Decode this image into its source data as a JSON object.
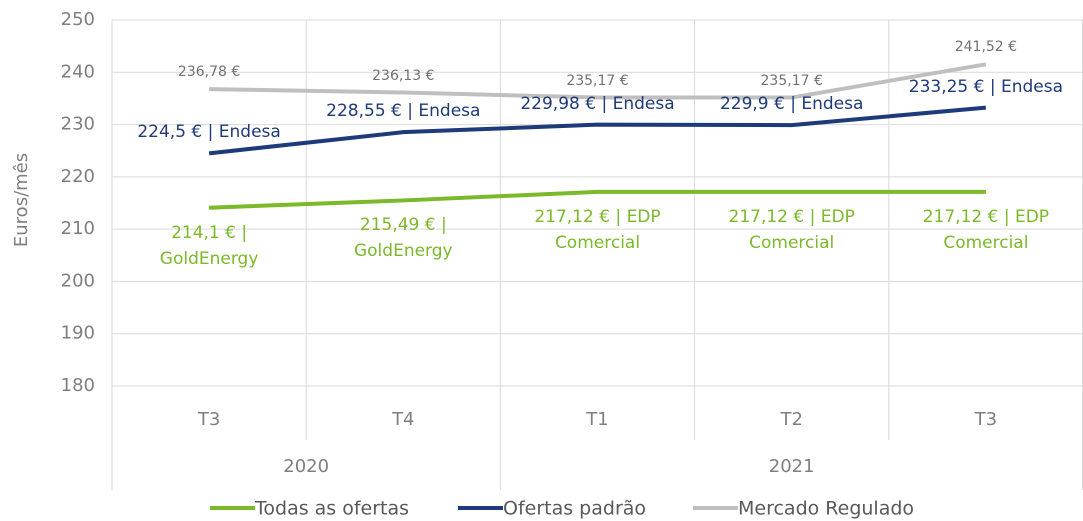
{
  "chart_data": {
    "type": "line",
    "y_label": "Euros/mês",
    "category_groups": [
      {
        "name": "2020",
        "categories": [
          "T3",
          "T4"
        ]
      },
      {
        "name": "2021",
        "categories": [
          "T1",
          "T2",
          "T3"
        ]
      }
    ],
    "ylim": [
      180,
      250
    ],
    "yticks": [
      180,
      190,
      200,
      210,
      220,
      230,
      240,
      250
    ],
    "grid": true,
    "legend": "bottom",
    "series": [
      {
        "name": "Todas as ofertas",
        "color": "#7ab929",
        "values": [
          214.1,
          215.49,
          217.12,
          217.12,
          217.12
        ],
        "value_labels": [
          "214,1 € | GoldEnergy",
          "215,49 € | GoldEnergy",
          "217,12 € | EDP Comercial",
          "217,12 € | EDP Comercial",
          "217,12 € | EDP Comercial"
        ]
      },
      {
        "name": "Ofertas padrão",
        "color": "#1f3a7a",
        "values": [
          224.5,
          228.55,
          229.98,
          229.9,
          233.25
        ],
        "value_labels": [
          "224,5 € | Endesa",
          "228,55 € | Endesa",
          "229,98 € | Endesa",
          "229,9 € | Endesa",
          "233,25 € | Endesa"
        ]
      },
      {
        "name": "Mercado Regulado",
        "color": "#bfbfbf",
        "values": [
          236.78,
          236.13,
          235.17,
          235.17,
          241.52
        ],
        "value_labels": [
          "236,78 €",
          "236,13 €",
          "235,17 €",
          "235,17 €",
          "241,52 €"
        ]
      }
    ]
  }
}
